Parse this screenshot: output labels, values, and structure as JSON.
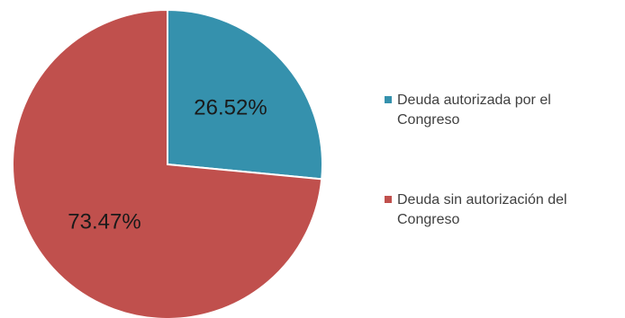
{
  "chart_data": {
    "type": "pie",
    "slices": [
      {
        "label": "Deuda autorizada por el Congreso",
        "value": 26.52,
        "display": "26.52%",
        "color": "#3591ad",
        "legend_lines": [
          "Deuda autorizada por el",
          "Congreso"
        ]
      },
      {
        "label": "Deuda sin autorización del Congreso",
        "value": 73.47,
        "display": "73.47%",
        "color": "#c0504d",
        "legend_lines": [
          "Deuda sin autorización del",
          "Congreso"
        ]
      }
    ],
    "start_angle": "12 o'clock",
    "direction": "clockwise",
    "legend_position": "right"
  }
}
